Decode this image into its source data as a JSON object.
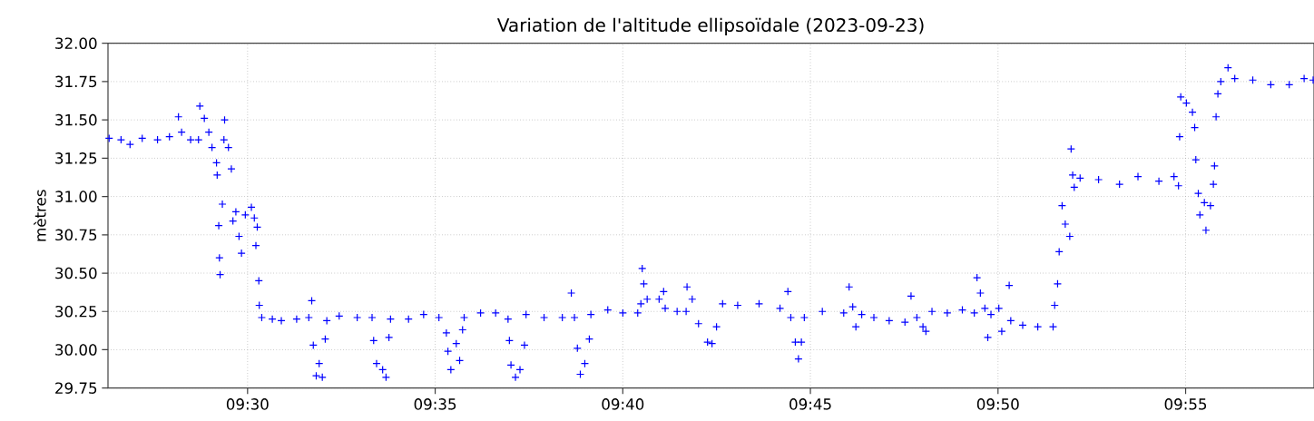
{
  "chart_data": {
    "type": "scatter",
    "title": "Variation de l'altitude ellipsoïdale (2023-09-23)",
    "ylabel": "mètres",
    "xlim": [
      9.438,
      9.9737
    ],
    "ylim": [
      29.75,
      32.0
    ],
    "xticks": [
      {
        "value": 9.5,
        "label": "09:30"
      },
      {
        "value": 9.583333,
        "label": "09:35"
      },
      {
        "value": 9.666667,
        "label": "09:40"
      },
      {
        "value": 9.75,
        "label": "09:45"
      },
      {
        "value": 9.833333,
        "label": "09:50"
      },
      {
        "value": 9.916667,
        "label": "09:55"
      }
    ],
    "yticks": [
      {
        "value": 29.75,
        "label": "29.75"
      },
      {
        "value": 30.0,
        "label": "30.00"
      },
      {
        "value": 30.25,
        "label": "30.25"
      },
      {
        "value": 30.5,
        "label": "30.50"
      },
      {
        "value": 30.75,
        "label": "30.75"
      },
      {
        "value": 31.0,
        "label": "31.00"
      },
      {
        "value": 31.25,
        "label": "31.25"
      },
      {
        "value": 31.5,
        "label": "31.50"
      },
      {
        "value": 31.75,
        "label": "31.75"
      },
      {
        "value": 32.0,
        "label": "32.00"
      }
    ],
    "grid": true,
    "marker": "cross",
    "series": [
      {
        "color": "#0000ff",
        "x": [
          9.4385,
          9.4438,
          9.4478,
          9.4532,
          9.46,
          9.4653,
          9.4693,
          9.4707,
          9.4747,
          9.4782,
          9.4788,
          9.4808,
          9.4828,
          9.4842,
          9.4862,
          9.4865,
          9.4872,
          9.4875,
          9.4878,
          9.4888,
          9.4895,
          9.4898,
          9.4915,
          9.4928,
          9.4935,
          9.4948,
          9.4962,
          9.4973,
          9.499,
          9.5017,
          9.503,
          9.5037,
          9.5043,
          9.505,
          9.5052,
          9.5063,
          9.511,
          9.515,
          9.5218,
          9.5272,
          9.5285,
          9.5292,
          9.5305,
          9.5318,
          9.5332,
          9.5345,
          9.5352,
          9.5407,
          9.5487,
          9.5553,
          9.556,
          9.5573,
          9.56,
          9.5615,
          9.5628,
          9.5635,
          9.5715,
          9.5782,
          9.585,
          9.5883,
          9.589,
          9.5903,
          9.5927,
          9.5942,
          9.5955,
          9.5962,
          9.6035,
          9.6102,
          9.6157,
          9.6163,
          9.617,
          9.619,
          9.621,
          9.623,
          9.6237,
          9.6317,
          9.6398,
          9.6438,
          9.6452,
          9.6465,
          9.6478,
          9.6498,
          9.6518,
          9.6525,
          9.66,
          9.6667,
          9.6733,
          9.6747,
          9.6753,
          9.676,
          9.6775,
          9.6828,
          9.6848,
          9.6855,
          9.6908,
          9.6948,
          9.6952,
          9.6975,
          9.7003,
          9.7043,
          9.7063,
          9.7083,
          9.711,
          9.7177,
          9.7272,
          9.7365,
          9.74,
          9.7413,
          9.7433,
          9.7447,
          9.746,
          9.7473,
          9.7553,
          9.7648,
          9.7672,
          9.7688,
          9.7702,
          9.7728,
          9.7782,
          9.785,
          9.792,
          9.7947,
          9.7973,
          9.8,
          9.8013,
          9.804,
          9.8108,
          9.8175,
          9.8228,
          9.824,
          9.8255,
          9.8275,
          9.8288,
          9.8302,
          9.8337,
          9.835,
          9.8383,
          9.839,
          9.8443,
          9.851,
          9.8578,
          9.8585,
          9.8598,
          9.8605,
          9.8618,
          9.8632,
          9.8652,
          9.8658,
          9.8665,
          9.8672,
          9.8698,
          9.878,
          9.8873,
          9.8955,
          9.9048,
          9.9115,
          9.9135,
          9.914,
          9.9145,
          9.917,
          9.9197,
          9.9207,
          9.9212,
          9.9223,
          9.923,
          9.925,
          9.9257,
          9.9277,
          9.929,
          9.9295,
          9.9302,
          9.931,
          9.9323,
          9.9355,
          9.9385,
          9.9465,
          9.9545,
          9.9627,
          9.9693,
          9.9733
        ],
        "values": [
          31.38,
          31.37,
          31.34,
          31.38,
          31.37,
          31.39,
          31.52,
          31.42,
          31.37,
          31.37,
          31.59,
          31.51,
          31.42,
          31.32,
          31.22,
          31.14,
          30.81,
          30.6,
          30.49,
          30.95,
          31.37,
          31.5,
          31.32,
          31.18,
          30.84,
          30.9,
          30.74,
          30.63,
          30.88,
          30.93,
          30.86,
          30.68,
          30.8,
          30.45,
          30.29,
          30.21,
          30.2,
          30.19,
          30.2,
          30.21,
          30.32,
          30.03,
          29.83,
          29.91,
          29.82,
          30.07,
          30.19,
          30.22,
          30.21,
          30.21,
          30.06,
          29.91,
          29.87,
          29.82,
          30.08,
          30.2,
          30.2,
          30.23,
          30.21,
          30.11,
          29.99,
          29.87,
          30.04,
          29.93,
          30.13,
          30.21,
          30.24,
          30.24,
          30.2,
          30.06,
          29.9,
          29.82,
          29.87,
          30.03,
          30.23,
          30.21,
          30.21,
          30.37,
          30.21,
          30.01,
          29.84,
          29.91,
          30.07,
          30.23,
          30.26,
          30.24,
          30.24,
          30.3,
          30.53,
          30.43,
          30.33,
          30.33,
          30.38,
          30.27,
          30.25,
          30.25,
          30.41,
          30.33,
          30.17,
          30.05,
          30.04,
          30.15,
          30.3,
          30.29,
          30.3,
          30.27,
          30.38,
          30.21,
          30.05,
          29.94,
          30.05,
          30.21,
          30.25,
          30.24,
          30.41,
          30.28,
          30.15,
          30.23,
          30.21,
          30.19,
          30.18,
          30.35,
          30.21,
          30.15,
          30.12,
          30.25,
          30.24,
          30.26,
          30.24,
          30.47,
          30.37,
          30.27,
          30.08,
          30.23,
          30.27,
          30.12,
          30.42,
          30.19,
          30.16,
          30.15,
          30.15,
          30.29,
          30.43,
          30.64,
          30.94,
          30.82,
          30.74,
          31.31,
          31.14,
          31.06,
          31.12,
          31.11,
          31.08,
          31.13,
          31.1,
          31.13,
          31.07,
          31.39,
          31.65,
          31.61,
          31.55,
          31.45,
          31.24,
          31.02,
          30.88,
          30.96,
          30.78,
          30.94,
          31.08,
          31.2,
          31.52,
          31.67,
          31.75,
          31.84,
          31.77,
          31.76,
          31.73,
          31.73,
          31.77,
          31.76
        ]
      }
    ]
  }
}
